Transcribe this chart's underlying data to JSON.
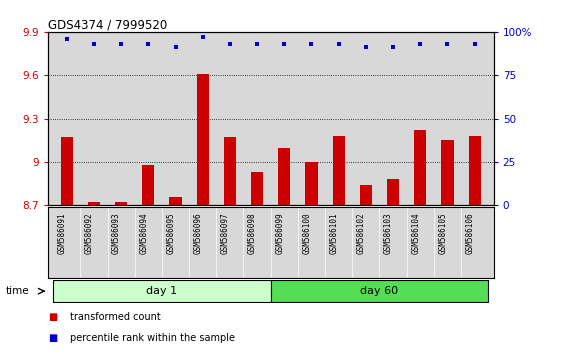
{
  "title": "GDS4374 / 7999520",
  "samples": [
    "GSM586091",
    "GSM586092",
    "GSM586093",
    "GSM586094",
    "GSM586095",
    "GSM586096",
    "GSM586097",
    "GSM586098",
    "GSM586099",
    "GSM586100",
    "GSM586101",
    "GSM586102",
    "GSM586103",
    "GSM586104",
    "GSM586105",
    "GSM586106"
  ],
  "bar_values": [
    9.17,
    8.72,
    8.72,
    8.98,
    8.76,
    9.61,
    9.17,
    8.93,
    9.1,
    9.0,
    9.18,
    8.84,
    8.88,
    9.22,
    9.15,
    9.18
  ],
  "percentile_values": [
    96,
    93,
    93,
    93,
    91,
    97,
    93,
    93,
    93,
    93,
    93,
    91,
    91,
    93,
    93,
    93
  ],
  "bar_color": "#cc0000",
  "dot_color": "#0000cc",
  "ylim_left": [
    8.7,
    9.9
  ],
  "ylim_right": [
    0,
    100
  ],
  "yticks_left": [
    8.7,
    9.0,
    9.3,
    9.6,
    9.9
  ],
  "ytick_labels_left": [
    "8.7",
    "9",
    "9.3",
    "9.6",
    "9.9"
  ],
  "yticks_right": [
    0,
    25,
    50,
    75,
    100
  ],
  "ytick_labels_right": [
    "0",
    "25",
    "50",
    "75",
    "100%"
  ],
  "grid_values": [
    9.0,
    9.3,
    9.6,
    9.9
  ],
  "day1_count": 8,
  "day60_count": 8,
  "day1_color": "#ccffcc",
  "day60_color": "#55dd55",
  "bg_color": "#d8d8d8",
  "bar_width": 0.45,
  "legend_bar_label": "transformed count",
  "legend_dot_label": "percentile rank within the sample"
}
